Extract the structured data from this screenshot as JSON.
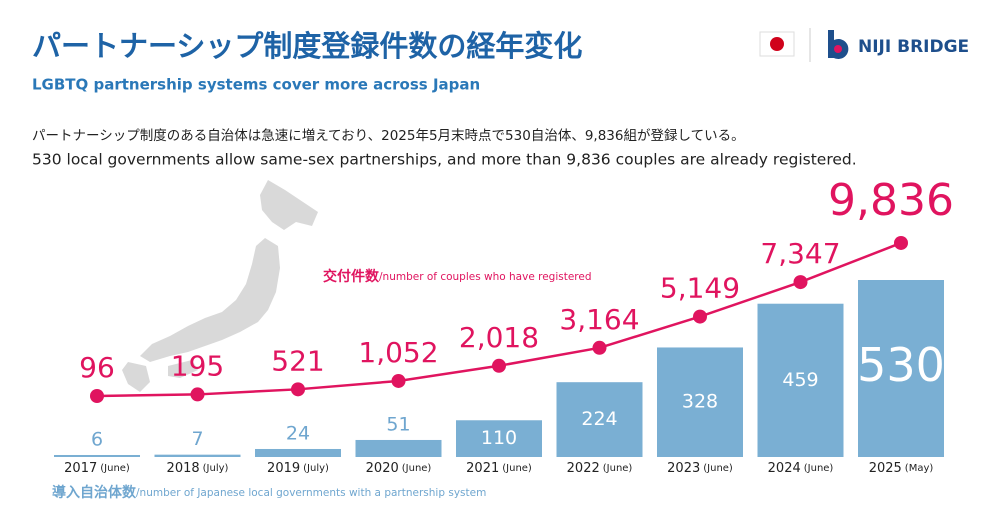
{
  "brand": "NIJI BRIDGE",
  "chart_data": {
    "type": "bar_line",
    "title": "パートナーシップ制度登録件数の経年変化",
    "subtitle": "LGBTQ partnership systems cover more across Japan",
    "description": [
      "パートナーシップ制度のある自治体は急速に増えており、2025年5月末時点で530自治体、9,836組が登録している。",
      "530 local governments allow same-sex partnerships, and more than 9,836 couples are already registered."
    ],
    "categories": [
      "2017",
      "2018",
      "2019",
      "2020",
      "2021",
      "2022",
      "2023",
      "2024",
      "2025"
    ],
    "category_notes": [
      "(June)",
      "(July)",
      "(July)",
      "(June)",
      "(June)",
      "(June)",
      "(June)",
      "(June)",
      "(May)"
    ],
    "ylim": [
      0,
      530
    ],
    "y2lim": [
      0,
      10000
    ],
    "series": [
      {
        "name": "導入自治体数",
        "name_note": "/number of Japanese local governments with a partnership system",
        "type": "bar",
        "color": "#7aafd3",
        "label_color": "#6fa6cf",
        "values": [
          6,
          7,
          24,
          51,
          110,
          224,
          328,
          459,
          530
        ]
      },
      {
        "name": "交付件数",
        "name_note": "/number of couples who have registered",
        "type": "line",
        "axis": "y2",
        "color": "#e0145f",
        "values": [
          96,
          195,
          521,
          1052,
          2018,
          3164,
          5149,
          7347,
          9836
        ],
        "value_labels": [
          "96",
          "195",
          "521",
          "1,052",
          "2,018",
          "3,164",
          "5,149",
          "7,347",
          "9,836"
        ]
      }
    ]
  }
}
